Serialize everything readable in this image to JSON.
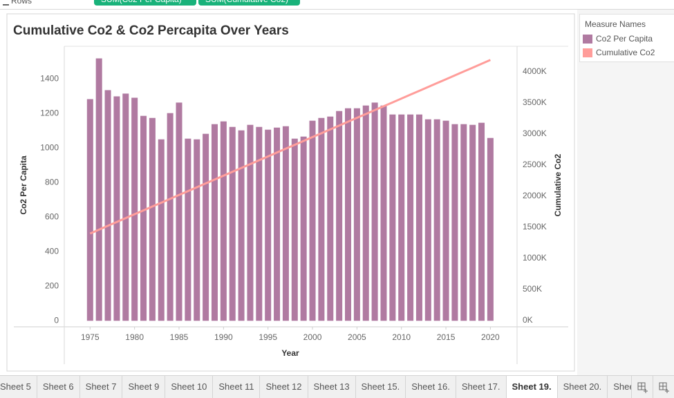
{
  "shelf": {
    "label": "Rows",
    "pills": [
      "SUM(Co2 Per Capita)",
      "SUM(Cumulative Co2)"
    ]
  },
  "legend": {
    "title": "Measure Names"
  },
  "tabs": [
    "Sheet 5",
    "Sheet 6",
    "Sheet 7",
    "Sheet 9",
    "Sheet 10",
    "Sheet 11",
    "Sheet 12",
    "Sheet 13",
    "Sheet 15.",
    "Sheet 16.",
    "Sheet 17.",
    "Sheet 19.",
    "Sheet 20.",
    "Sheet 21",
    "Sheet"
  ],
  "active_tab": 11,
  "chart_data": {
    "type": "combo",
    "title": "Cumulative Co2 & Co2 Percapita Over Years",
    "x_label": "Year",
    "y_label": "Co2 Per Capita",
    "y2_label": "Cumulative Co2",
    "x": [
      1975,
      1976,
      1977,
      1978,
      1979,
      1980,
      1981,
      1982,
      1983,
      1984,
      1985,
      1986,
      1987,
      1988,
      1989,
      1990,
      1991,
      1992,
      1993,
      1994,
      1995,
      1996,
      1997,
      1998,
      1999,
      2000,
      2001,
      2002,
      2003,
      2004,
      2005,
      2006,
      2007,
      2008,
      2009,
      2010,
      2011,
      2012,
      2013,
      2014,
      2015,
      2016,
      2017,
      2018,
      2019,
      2020
    ],
    "xlim": [
      1972.1,
      2023
    ],
    "xticks": [
      1975,
      1980,
      1985,
      1990,
      1995,
      2000,
      2005,
      2010,
      2015,
      2020
    ],
    "ylim": [
      -35,
      1590
    ],
    "yticks": [
      0,
      200,
      400,
      600,
      800,
      1000,
      1200,
      1400
    ],
    "y2lim": [
      -100000,
      4410000
    ],
    "y2ticks": [
      {
        "value": 0,
        "label": "0K"
      },
      {
        "value": 500000,
        "label": "500K"
      },
      {
        "value": 1000000,
        "label": "1000K"
      },
      {
        "value": 1500000,
        "label": "1500K"
      },
      {
        "value": 2000000,
        "label": "2000K"
      },
      {
        "value": 2500000,
        "label": "2500K"
      },
      {
        "value": 3000000,
        "label": "3000K"
      },
      {
        "value": 3500000,
        "label": "3500K"
      },
      {
        "value": 4000000,
        "label": "4000K"
      }
    ],
    "grid": false,
    "series": [
      {
        "name": "Co2 Per Capita",
        "type": "bar",
        "color": "#b07aa1",
        "values": [
          1284,
          1520,
          1336,
          1300,
          1316,
          1292,
          1187,
          1175,
          1051,
          1203,
          1264,
          1055,
          1051,
          1083,
          1139,
          1155,
          1123,
          1103,
          1135,
          1123,
          1107,
          1119,
          1127,
          1055,
          1067,
          1159,
          1175,
          1183,
          1215,
          1231,
          1231,
          1247,
          1264,
          1247,
          1195,
          1195,
          1195,
          1195,
          1167,
          1167,
          1159,
          1139,
          1139,
          1135,
          1147,
          1059
        ]
      },
      {
        "name": "Cumulative Co2",
        "type": "line",
        "axis": "y2",
        "color": "#ff9d9a",
        "values": [
          1400000,
          1462000,
          1524000,
          1586000,
          1648000,
          1710000,
          1772000,
          1834000,
          1896000,
          1958000,
          2020000,
          2082000,
          2144000,
          2206000,
          2268000,
          2330000,
          2392000,
          2454000,
          2516000,
          2578000,
          2640000,
          2702000,
          2764000,
          2826000,
          2888000,
          2950000,
          3012000,
          3074000,
          3136000,
          3198000,
          3260000,
          3322000,
          3384000,
          3446000,
          3508000,
          3570000,
          3632000,
          3694000,
          3756000,
          3818000,
          3880000,
          3942000,
          4004000,
          4066000,
          4128000,
          4190000
        ]
      }
    ]
  }
}
